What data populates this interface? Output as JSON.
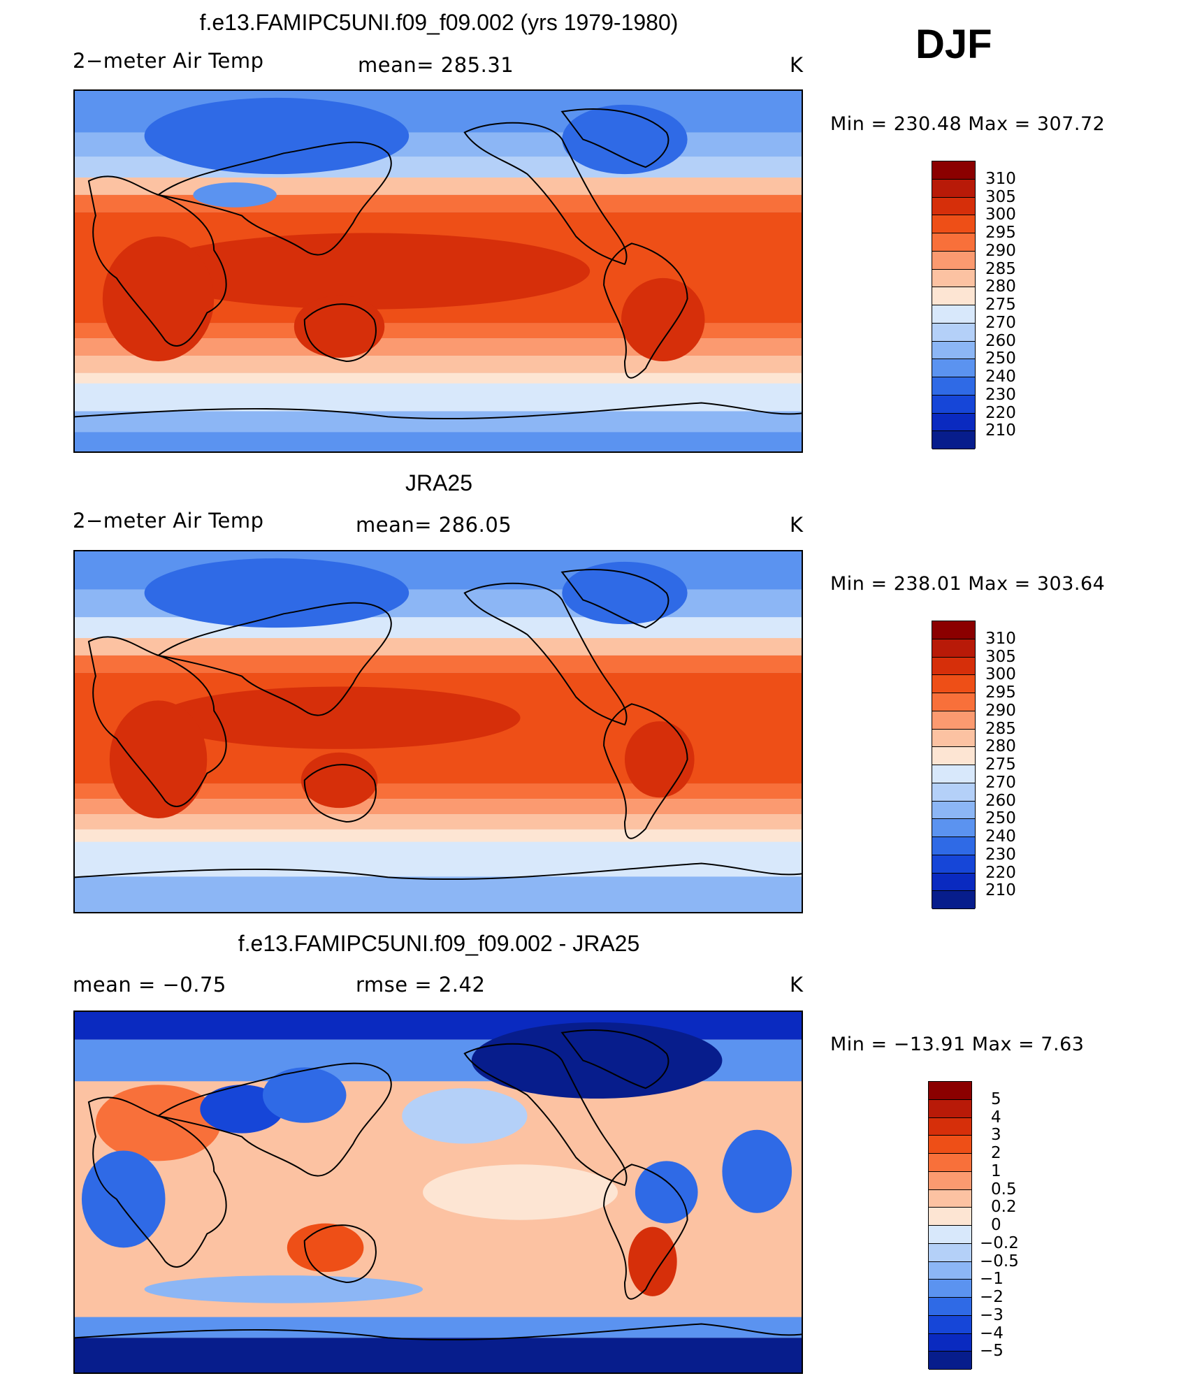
{
  "season": "DJF",
  "panels": [
    {
      "title": "f.e13.FAMIPC5UNI.f09_f09.002 (yrs 1979-1980)",
      "left_label": "2−meter Air Temp",
      "mid_label": "mean=  285.31",
      "units": "K",
      "minmax": "Min  =  230.48  Max  =  307.72",
      "colorbar": {
        "labels": [
          "310",
          "305",
          "300",
          "295",
          "290",
          "285",
          "280",
          "275",
          "270",
          "260",
          "250",
          "240",
          "230",
          "220",
          "210"
        ],
        "colors": [
          "#8b0000",
          "#b81a08",
          "#d62f0a",
          "#ee4f17",
          "#f8703a",
          "#fb9a70",
          "#fcc2a2",
          "#fde5d3",
          "#d8e8fb",
          "#b4d0f8",
          "#8cb6f5",
          "#5b93f0",
          "#2f6ae6",
          "#1646d8",
          "#0a2ac0",
          "#071d8c"
        ]
      },
      "map_type": "temperature-model"
    },
    {
      "title": "JRA25",
      "left_label": "2−meter Air Temp",
      "mid_label": "mean=  286.05",
      "units": "K",
      "minmax": "Min  =  238.01  Max  =  303.64",
      "colorbar": {
        "labels": [
          "310",
          "305",
          "300",
          "295",
          "290",
          "285",
          "280",
          "275",
          "270",
          "260",
          "250",
          "240",
          "230",
          "220",
          "210"
        ],
        "colors": [
          "#8b0000",
          "#b81a08",
          "#d62f0a",
          "#ee4f17",
          "#f8703a",
          "#fb9a70",
          "#fcc2a2",
          "#fde5d3",
          "#d8e8fb",
          "#b4d0f8",
          "#8cb6f5",
          "#5b93f0",
          "#2f6ae6",
          "#1646d8",
          "#0a2ac0",
          "#071d8c"
        ]
      },
      "map_type": "temperature-reanalysis"
    },
    {
      "title": "f.e13.FAMIPC5UNI.f09_f09.002 - JRA25",
      "left_label": "mean  =    −0.75",
      "mid_label": "rmse  =     2.42",
      "units": "K",
      "minmax": "Min  =  −13.91  Max  =      7.63",
      "colorbar": {
        "labels": [
          "5",
          "4",
          "3",
          "2",
          "1",
          "0.5",
          "0.2",
          "0",
          "−0.2",
          "−0.5",
          "−1",
          "−2",
          "−3",
          "−4",
          "−5"
        ],
        "colors": [
          "#8b0000",
          "#b81a08",
          "#d62f0a",
          "#ee4f17",
          "#f8703a",
          "#fb9a70",
          "#fcc2a2",
          "#fde5d3",
          "#d8e8fb",
          "#b4d0f8",
          "#8cb6f5",
          "#5b93f0",
          "#2f6ae6",
          "#1646d8",
          "#0a2ac0",
          "#071d8c"
        ]
      },
      "map_type": "difference"
    }
  ]
}
